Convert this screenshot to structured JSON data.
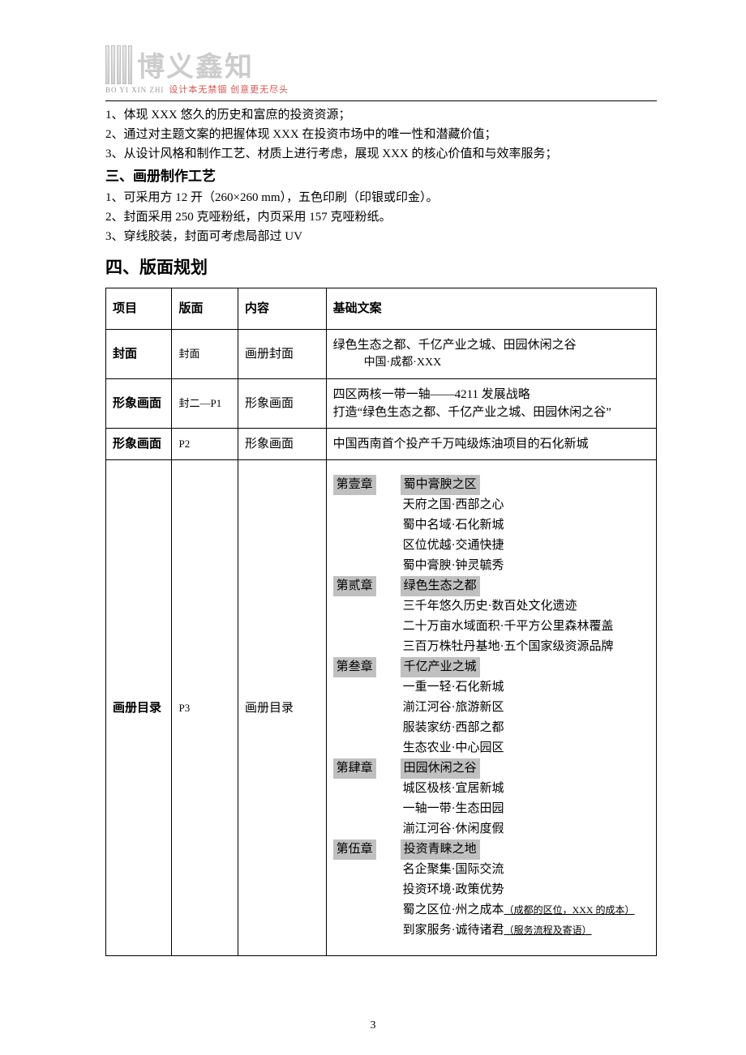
{
  "logo": {
    "text": "博义鑫知",
    "pinyin": "BO YI XIN ZHI",
    "tagline": "设计本无禁锢  创意更无尽头"
  },
  "intro_lines": [
    "1、体现 XXX 悠久的历史和富庶的投资资源；",
    "2、通过对主题文案的把握体现 XXX 在投资市场中的唯一性和潜藏价值；",
    "3、从设计风格和制作工艺、材质上进行考虑，展现 XXX 的核心价值和与效率服务；"
  ],
  "section3": {
    "heading": "三、画册制作工艺",
    "lines": [
      "1、可采用方 12 开（260×260 mm），五色印刷（印银或印金）。",
      "2、封面采用 250 克哑粉纸，内页采用 157 克哑粉纸。",
      "3、穿线胶装，封面可考虑局部过 UV"
    ]
  },
  "section4": {
    "heading": "四、版面规划",
    "table": {
      "headers": {
        "project": "项目",
        "page": "版面",
        "content": "内容",
        "copy": "基础文案"
      },
      "row_cover": {
        "project": "封面",
        "page": "封面",
        "content": "画册封面",
        "copy_line1": "绿色生态之都、千亿产业之城、田园休闲之谷",
        "copy_line2": "中国·成都·XXX"
      },
      "row_image1": {
        "project": "形象画面",
        "page": "封二—P1",
        "content": "形象画面",
        "copy_line1": "四区两核一带一轴——4211 发展战略",
        "copy_line2": "打造“绿色生态之都、千亿产业之城、田园休闲之谷”"
      },
      "row_image2": {
        "project": "形象画面",
        "page": "P2",
        "content": "形象画面",
        "copy": "中国西南首个投产千万吨级炼油项目的石化新城"
      },
      "row_toc": {
        "project": "画册目录",
        "page": "P3",
        "content": "画册目录",
        "chapters": [
          {
            "label": "第壹章",
            "title": "蜀中膏腴之区",
            "items": [
              {
                "text": "天府之国·西部之心"
              },
              {
                "text": "蜀中名域·石化新城"
              },
              {
                "text": "区位优越·交通快捷"
              },
              {
                "text": "蜀中膏腴·钟灵毓秀"
              }
            ]
          },
          {
            "label": "第贰章",
            "title": "绿色生态之都",
            "items": [
              {
                "text": "三千年悠久历史·数百处文化遗迹"
              },
              {
                "text": "二十万亩水域面积·千平方公里森林覆盖"
              },
              {
                "text": "三百万株牡丹基地·五个国家级资源品牌"
              }
            ]
          },
          {
            "label": "第叁章",
            "title": "千亿产业之城",
            "items": [
              {
                "text": "一重一轻·石化新城"
              },
              {
                "text": "湔江河谷·旅游新区"
              },
              {
                "text": "服装家纺·西部之都"
              },
              {
                "text": "生态农业·中心园区"
              }
            ]
          },
          {
            "label": "第肆章",
            "title": "田园休闲之谷",
            "items": [
              {
                "text": "城区极核·宜居新城"
              },
              {
                "text": "一轴一带·生态田园"
              },
              {
                "text": "湔江河谷·休闲度假"
              }
            ]
          },
          {
            "label": "第伍章",
            "title": "投资青睐之地",
            "items": [
              {
                "text": "名企聚集·国际交流"
              },
              {
                "text": "投资环境·政策优势"
              },
              {
                "text": "蜀之区位·州之成本",
                "note": "（成都的区位，XXX 的成本）"
              },
              {
                "text": "到家服务·诚待诸君",
                "note": "（服务流程及寄语）"
              }
            ]
          }
        ]
      }
    }
  },
  "page_number": "3"
}
